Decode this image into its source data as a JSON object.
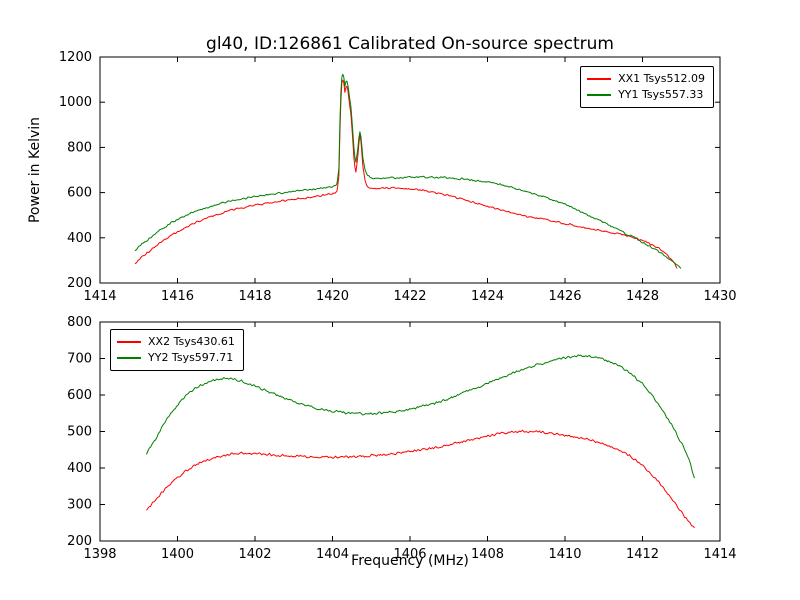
{
  "figure": {
    "background": "#ffffff",
    "axis_color": "#000000"
  },
  "chart_data": [
    {
      "type": "line",
      "title": "gl40, ID:126861 Calibrated On-source spectrum",
      "xlabel": "",
      "ylabel": "Power in Kelvin",
      "xlim": [
        1414,
        1430
      ],
      "ylim": [
        200,
        1200
      ],
      "xticks": [
        1414,
        1416,
        1418,
        1420,
        1422,
        1424,
        1426,
        1428,
        1430
      ],
      "yticks": [
        200,
        400,
        600,
        800,
        1000,
        1200
      ],
      "grid": false,
      "legend_position": "upper right",
      "series": [
        {
          "name": "XX1 Tsys512.09",
          "color": "#ff0000",
          "points": [
            [
              1414.9,
              288
            ],
            [
              1415.1,
              318
            ],
            [
              1415.35,
              352
            ],
            [
              1415.6,
              385
            ],
            [
              1415.85,
              412
            ],
            [
              1416.1,
              437
            ],
            [
              1416.4,
              462
            ],
            [
              1416.7,
              484
            ],
            [
              1417.0,
              503
            ],
            [
              1417.3,
              518
            ],
            [
              1417.6,
              531
            ],
            [
              1417.9,
              541
            ],
            [
              1418.2,
              550
            ],
            [
              1418.5,
              558
            ],
            [
              1418.8,
              565
            ],
            [
              1419.1,
              572
            ],
            [
              1419.4,
              578
            ],
            [
              1419.7,
              585
            ],
            [
              1419.95,
              595
            ],
            [
              1420.05,
              600
            ],
            [
              1420.12,
              608
            ],
            [
              1420.17,
              680
            ],
            [
              1420.2,
              950
            ],
            [
              1420.24,
              1090
            ],
            [
              1420.28,
              1105
            ],
            [
              1420.32,
              1040
            ],
            [
              1420.36,
              1075
            ],
            [
              1420.4,
              1045
            ],
            [
              1420.44,
              990
            ],
            [
              1420.48,
              940
            ],
            [
              1420.52,
              840
            ],
            [
              1420.56,
              730
            ],
            [
              1420.6,
              690
            ],
            [
              1420.65,
              760
            ],
            [
              1420.7,
              860
            ],
            [
              1420.74,
              820
            ],
            [
              1420.78,
              720
            ],
            [
              1420.84,
              650
            ],
            [
              1420.9,
              625
            ],
            [
              1421.0,
              617
            ],
            [
              1421.2,
              618
            ],
            [
              1421.5,
              620
            ],
            [
              1421.8,
              619
            ],
            [
              1422.1,
              615
            ],
            [
              1422.4,
              608
            ],
            [
              1422.7,
              598
            ],
            [
              1423.0,
              586
            ],
            [
              1423.3,
              573
            ],
            [
              1423.6,
              560
            ],
            [
              1423.9,
              546
            ],
            [
              1424.2,
              531
            ],
            [
              1424.5,
              517
            ],
            [
              1424.8,
              503
            ],
            [
              1425.1,
              492
            ],
            [
              1425.4,
              483
            ],
            [
              1425.7,
              474
            ],
            [
              1426.0,
              463
            ],
            [
              1426.3,
              452
            ],
            [
              1426.6,
              441
            ],
            [
              1426.9,
              432
            ],
            [
              1427.2,
              423
            ],
            [
              1427.5,
              413
            ],
            [
              1427.8,
              400
            ],
            [
              1428.1,
              382
            ],
            [
              1428.4,
              355
            ],
            [
              1428.6,
              328
            ],
            [
              1428.8,
              292
            ],
            [
              1428.9,
              262
            ]
          ]
        },
        {
          "name": "YY1 Tsys557.33",
          "color": "#007f00",
          "points": [
            [
              1414.9,
              345
            ],
            [
              1415.1,
              375
            ],
            [
              1415.35,
              408
            ],
            [
              1415.6,
              440
            ],
            [
              1415.85,
              467
            ],
            [
              1416.1,
              490
            ],
            [
              1416.4,
              512
            ],
            [
              1416.7,
              531
            ],
            [
              1417.0,
              547
            ],
            [
              1417.3,
              560
            ],
            [
              1417.6,
              571
            ],
            [
              1417.9,
              580
            ],
            [
              1418.2,
              588
            ],
            [
              1418.5,
              595
            ],
            [
              1418.8,
              601
            ],
            [
              1419.1,
              607
            ],
            [
              1419.4,
              613
            ],
            [
              1419.7,
              619
            ],
            [
              1419.95,
              626
            ],
            [
              1420.05,
              630
            ],
            [
              1420.12,
              638
            ],
            [
              1420.17,
              720
            ],
            [
              1420.2,
              1000
            ],
            [
              1420.24,
              1115
            ],
            [
              1420.28,
              1130
            ],
            [
              1420.32,
              1070
            ],
            [
              1420.36,
              1100
            ],
            [
              1420.4,
              1075
            ],
            [
              1420.44,
              1020
            ],
            [
              1420.48,
              970
            ],
            [
              1420.52,
              880
            ],
            [
              1420.56,
              780
            ],
            [
              1420.6,
              730
            ],
            [
              1420.65,
              790
            ],
            [
              1420.7,
              875
            ],
            [
              1420.74,
              845
            ],
            [
              1420.78,
              760
            ],
            [
              1420.84,
              700
            ],
            [
              1420.9,
              675
            ],
            [
              1421.0,
              665
            ],
            [
              1421.3,
              664
            ],
            [
              1421.6,
              666
            ],
            [
              1421.9,
              668
            ],
            [
              1422.2,
              669
            ],
            [
              1422.5,
              668
            ],
            [
              1422.8,
              667
            ],
            [
              1423.1,
              664
            ],
            [
              1423.4,
              660
            ],
            [
              1423.7,
              654
            ],
            [
              1424.0,
              646
            ],
            [
              1424.3,
              636
            ],
            [
              1424.6,
              624
            ],
            [
              1424.9,
              610
            ],
            [
              1425.2,
              594
            ],
            [
              1425.5,
              578
            ],
            [
              1425.8,
              561
            ],
            [
              1426.1,
              543
            ],
            [
              1426.4,
              515
            ],
            [
              1426.7,
              492
            ],
            [
              1427.0,
              467
            ],
            [
              1427.3,
              442
            ],
            [
              1427.6,
              416
            ],
            [
              1427.9,
              390
            ],
            [
              1428.2,
              362
            ],
            [
              1428.5,
              330
            ],
            [
              1428.75,
              298
            ],
            [
              1429.0,
              262
            ]
          ]
        }
      ]
    },
    {
      "type": "line",
      "title": "",
      "xlabel": "Frequency (MHz)",
      "ylabel": "",
      "xlim": [
        1398,
        1414
      ],
      "ylim": [
        200,
        800
      ],
      "xticks": [
        1398,
        1400,
        1402,
        1404,
        1406,
        1408,
        1410,
        1412,
        1414
      ],
      "yticks": [
        200,
        300,
        400,
        500,
        600,
        700,
        800
      ],
      "grid": false,
      "legend_position": "upper left",
      "series": [
        {
          "name": "XX2 Tsys430.61",
          "color": "#ff0000",
          "points": [
            [
              1399.2,
              283
            ],
            [
              1399.4,
              310
            ],
            [
              1399.7,
              345
            ],
            [
              1400.0,
              375
            ],
            [
              1400.3,
              398
            ],
            [
              1400.6,
              415
            ],
            [
              1401.0,
              430
            ],
            [
              1401.3,
              437
            ],
            [
              1401.6,
              440
            ],
            [
              1402.0,
              439
            ],
            [
              1402.5,
              436
            ],
            [
              1403.0,
              433
            ],
            [
              1403.5,
              431
            ],
            [
              1404.0,
              430
            ],
            [
              1404.5,
              431
            ],
            [
              1405.0,
              434
            ],
            [
              1405.5,
              438
            ],
            [
              1406.0,
              445
            ],
            [
              1406.5,
              453
            ],
            [
              1407.0,
              463
            ],
            [
              1407.5,
              475
            ],
            [
              1408.0,
              488
            ],
            [
              1408.3,
              494
            ],
            [
              1408.7,
              499
            ],
            [
              1409.0,
              500
            ],
            [
              1409.3,
              499
            ],
            [
              1409.7,
              495
            ],
            [
              1410.0,
              490
            ],
            [
              1410.4,
              482
            ],
            [
              1410.8,
              472
            ],
            [
              1411.2,
              458
            ],
            [
              1411.6,
              438
            ],
            [
              1412.0,
              408
            ],
            [
              1412.4,
              365
            ],
            [
              1412.8,
              310
            ],
            [
              1413.1,
              265
            ],
            [
              1413.35,
              235
            ]
          ]
        },
        {
          "name": "YY2 Tsys597.71",
          "color": "#007f00",
          "points": [
            [
              1399.2,
              438
            ],
            [
              1399.5,
              492
            ],
            [
              1399.8,
              545
            ],
            [
              1400.1,
              585
            ],
            [
              1400.4,
              615
            ],
            [
              1400.7,
              632
            ],
            [
              1401.0,
              642
            ],
            [
              1401.3,
              645
            ],
            [
              1401.6,
              640
            ],
            [
              1402.0,
              625
            ],
            [
              1402.4,
              607
            ],
            [
              1402.8,
              590
            ],
            [
              1403.2,
              575
            ],
            [
              1403.6,
              563
            ],
            [
              1404.0,
              556
            ],
            [
              1404.4,
              551
            ],
            [
              1404.8,
              549
            ],
            [
              1405.2,
              550
            ],
            [
              1405.6,
              554
            ],
            [
              1406.0,
              561
            ],
            [
              1406.4,
              571
            ],
            [
              1406.8,
              583
            ],
            [
              1407.2,
              598
            ],
            [
              1407.6,
              615
            ],
            [
              1408.0,
              632
            ],
            [
              1408.4,
              650
            ],
            [
              1408.8,
              666
            ],
            [
              1409.2,
              680
            ],
            [
              1409.6,
              692
            ],
            [
              1410.0,
              702
            ],
            [
              1410.3,
              708
            ],
            [
              1410.6,
              707
            ],
            [
              1411.0,
              698
            ],
            [
              1411.4,
              680
            ],
            [
              1411.7,
              658
            ],
            [
              1412.0,
              630
            ],
            [
              1412.3,
              592
            ],
            [
              1412.6,
              545
            ],
            [
              1412.9,
              490
            ],
            [
              1413.2,
              425
            ],
            [
              1413.35,
              370
            ]
          ]
        }
      ]
    }
  ]
}
